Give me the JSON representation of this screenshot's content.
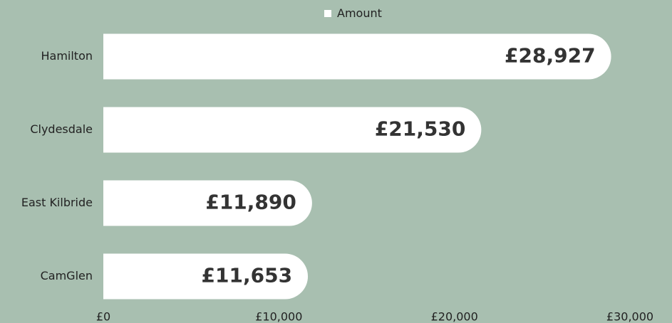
{
  "chart_data": {
    "type": "bar",
    "orientation": "horizontal",
    "categories": [
      "Hamilton",
      "Clydesdale",
      "East Kilbride",
      "CamGlen"
    ],
    "series": [
      {
        "name": "Amount",
        "color": "#ffffff",
        "values": [
          28927,
          21530,
          11890,
          11653
        ],
        "value_labels": [
          "£28,927",
          "£21,530",
          "£11,890",
          "£11,653"
        ]
      }
    ],
    "xlim": [
      0,
      30000
    ],
    "xticks": [
      {
        "value": 0,
        "label": "£0"
      },
      {
        "value": 10000,
        "label": "£10,000"
      },
      {
        "value": 20000,
        "label": "£20,000"
      },
      {
        "value": 30000,
        "label": "£30,000"
      }
    ],
    "legend": "top"
  }
}
